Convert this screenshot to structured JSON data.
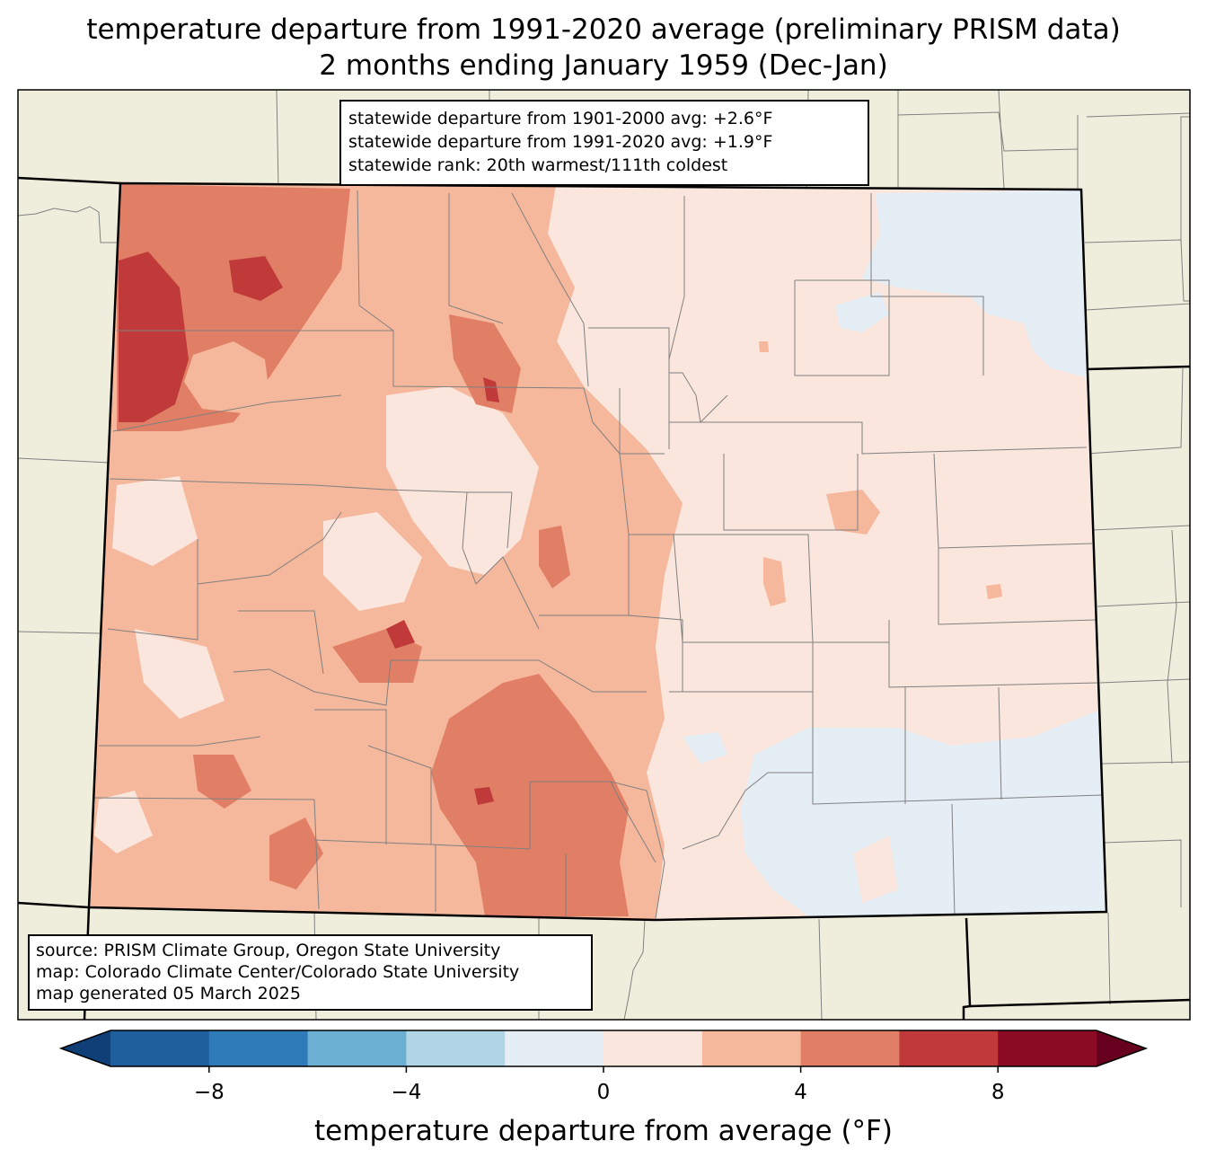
{
  "title": {
    "line1": "temperature departure from 1991-2020 average (preliminary PRISM data)",
    "line2": "2 months ending January 1959 (Dec-Jan)"
  },
  "stats": {
    "line1": "statewide departure from 1901-2000 avg: +2.6°F",
    "line2": "statewide departure from 1991-2020 avg: +1.9°F",
    "line3": "statewide rank: 20th warmest/111th coldest"
  },
  "credits": {
    "source": "source: PRISM Climate Group, Oregon State University",
    "map": "map: Colorado Climate Center/Colorado State University",
    "generated": "map generated 05 March 2025"
  },
  "colorbar": {
    "label": "temperature departure from average (°F)",
    "ticks": [
      "−8",
      "−4",
      "0",
      "4",
      "8"
    ],
    "tick_values": [
      -8,
      -4,
      0,
      4,
      8
    ],
    "range": [
      -10,
      10
    ],
    "bin_width": 2,
    "colors": [
      "#103f78",
      "#1f5f9e",
      "#2f7ab8",
      "#6bafd2",
      "#b0d5e7",
      "#e5edf5",
      "#fae6dd",
      "#f6b89c",
      "#e17e66",
      "#c03a3a",
      "#8b0c24",
      "#67001f"
    ]
  },
  "colors": {
    "land": "#efeedc",
    "state_border": "#000000",
    "county_border": "#808080",
    "cool_anomaly": "#e5edf5",
    "neutral_warm": "#fae6dd",
    "warm_2_4": "#f6b89c",
    "warm_4_6": "#e17e66",
    "warm_6_8": "#c03a3a"
  }
}
